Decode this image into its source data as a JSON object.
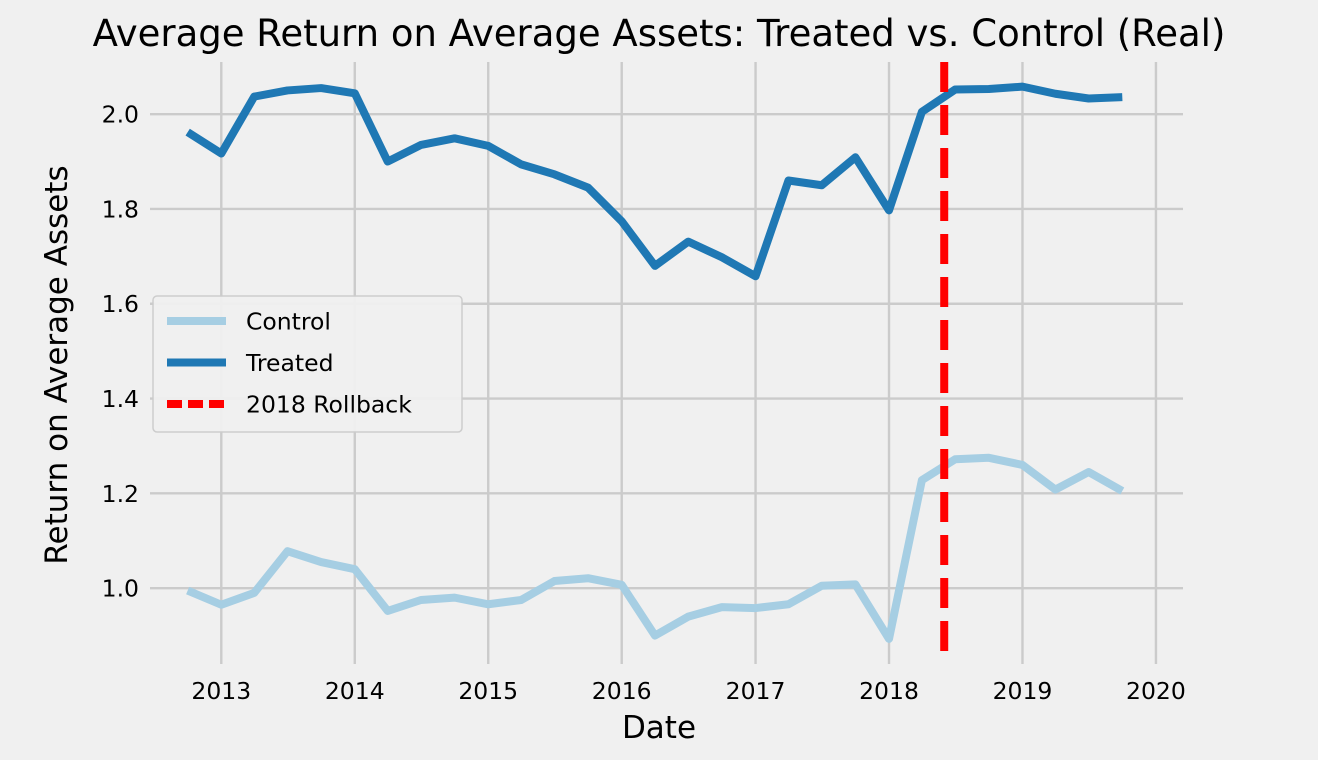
{
  "chart_data": {
    "type": "line",
    "title": "Average Return on Average Assets: Treated vs. Control (Real)",
    "xlabel": "Date",
    "ylabel": "Return on Average Assets",
    "x": [
      "2012-10-01",
      "2013-01-01",
      "2013-04-01",
      "2013-07-01",
      "2013-10-01",
      "2014-01-01",
      "2014-04-01",
      "2014-07-01",
      "2014-10-01",
      "2015-01-01",
      "2015-04-01",
      "2015-07-01",
      "2015-10-01",
      "2016-01-01",
      "2016-04-01",
      "2016-07-01",
      "2016-10-01",
      "2017-01-01",
      "2017-04-01",
      "2017-07-01",
      "2017-10-01",
      "2018-01-01",
      "2018-04-01",
      "2018-07-01",
      "2018-10-01",
      "2019-01-01",
      "2019-04-01",
      "2019-07-01",
      "2019-10-01"
    ],
    "series": [
      {
        "name": "Control",
        "color": "#a6cee3",
        "values": [
          0.995,
          0.965,
          0.99,
          1.078,
          1.055,
          1.04,
          0.952,
          0.975,
          0.98,
          0.966,
          0.975,
          1.015,
          1.021,
          1.007,
          0.9,
          0.94,
          0.96,
          0.958,
          0.966,
          1.005,
          1.008,
          0.893,
          1.228,
          1.272,
          1.275,
          1.26,
          1.208,
          1.245,
          1.205
        ]
      },
      {
        "name": "Treated",
        "color": "#1f78b4",
        "values": [
          1.962,
          1.917,
          2.037,
          2.05,
          2.055,
          2.044,
          1.9,
          1.935,
          1.949,
          1.933,
          1.894,
          1.873,
          1.845,
          1.774,
          1.68,
          1.731,
          1.698,
          1.658,
          1.86,
          1.85,
          1.909,
          1.797,
          2.005,
          2.052,
          2.053,
          2.058,
          2.043,
          2.033,
          2.036
        ]
      }
    ],
    "vline": {
      "name": "2018 Rollback",
      "x": "2018-06-01",
      "color": "#ff0000",
      "style": "dashed"
    },
    "xticks": [
      "2013",
      "2014",
      "2015",
      "2016",
      "2017",
      "2018",
      "2019",
      "2020"
    ],
    "yticks": [
      "1.0",
      "1.2",
      "1.4",
      "1.6",
      "1.8",
      "2.0"
    ],
    "xlim": [
      "2012-06-20",
      "2020-03-15"
    ],
    "ylim": [
      0.84,
      2.11
    ],
    "grid": true,
    "legend": {
      "position": "center-left",
      "entries": [
        "Control",
        "Treated",
        "2018 Rollback"
      ]
    }
  }
}
